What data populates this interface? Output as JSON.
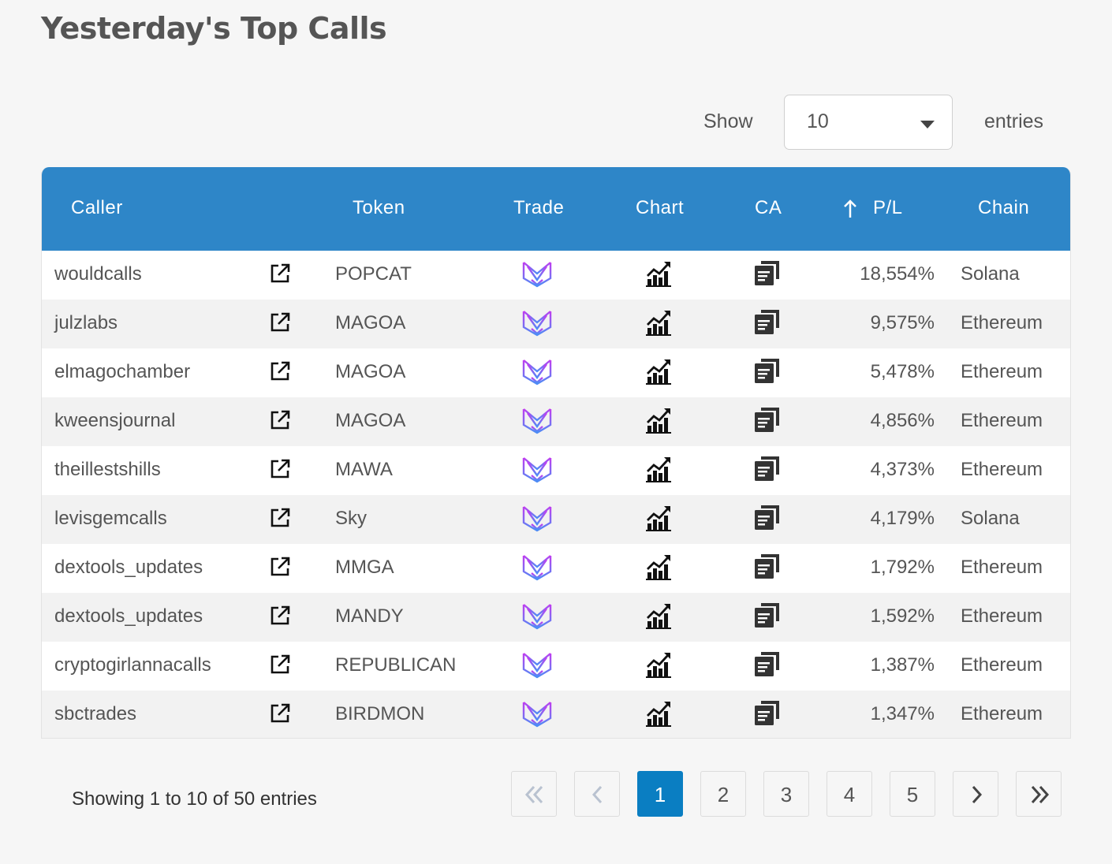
{
  "title": "Yesterday's Top Calls",
  "length_menu": {
    "show_label": "Show",
    "selected": "10",
    "entries_label": "entries"
  },
  "columns": {
    "caller": "Caller",
    "token": "Token",
    "trade": "Trade",
    "chart": "Chart",
    "ca": "CA",
    "pl": "P/L",
    "chain": "Chain"
  },
  "sort": {
    "column": "pl",
    "direction": "desc"
  },
  "rows": [
    {
      "caller": "wouldcalls",
      "token": "POPCAT",
      "pl": "18,554%",
      "chain": "Solana"
    },
    {
      "caller": "julzlabs",
      "token": "MAGOA",
      "pl": "9,575%",
      "chain": "Ethereum"
    },
    {
      "caller": "elmagochamber",
      "token": "MAGOA",
      "pl": "5,478%",
      "chain": "Ethereum"
    },
    {
      "caller": "kweensjournal",
      "token": "MAGOA",
      "pl": "4,856%",
      "chain": "Ethereum"
    },
    {
      "caller": "theillestshills",
      "token": "MAWA",
      "pl": "4,373%",
      "chain": "Ethereum"
    },
    {
      "caller": "levisgemcalls",
      "token": "Sky",
      "pl": "4,179%",
      "chain": "Solana"
    },
    {
      "caller": "dextools_updates",
      "token": "MMGA",
      "pl": "1,792%",
      "chain": "Ethereum"
    },
    {
      "caller": "dextools_updates",
      "token": "MANDY",
      "pl": "1,592%",
      "chain": "Ethereum"
    },
    {
      "caller": "cryptogirlannacalls",
      "token": "REPUBLICAN",
      "pl": "1,387%",
      "chain": "Ethereum"
    },
    {
      "caller": "sbctrades",
      "token": "BIRDMON",
      "pl": "1,347%",
      "chain": "Ethereum"
    }
  ],
  "icons": {
    "caller_link": "external-link-icon",
    "trade": "trade-logo-icon",
    "chart": "chart-icon",
    "ca": "copy-icon",
    "sort": "arrow-up-icon"
  },
  "colors": {
    "header": "#2e86c8",
    "active_page": "#0a7ec2"
  },
  "info": "Showing 1 to 10 of 50 entries",
  "pagination": {
    "first": "first-page-icon",
    "prev": "prev-page-icon",
    "pages": [
      "1",
      "2",
      "3",
      "4",
      "5"
    ],
    "current": "1",
    "next": "next-page-icon",
    "last": "last-page-icon"
  }
}
